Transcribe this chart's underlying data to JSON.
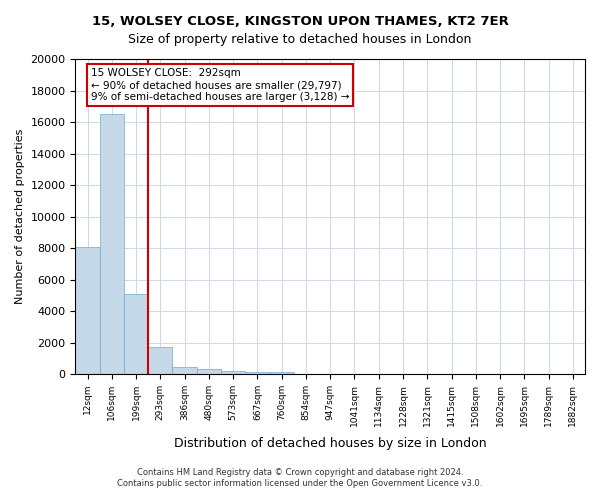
{
  "title1": "15, WOLSEY CLOSE, KINGSTON UPON THAMES, KT2 7ER",
  "title2": "Size of property relative to detached houses in London",
  "xlabel": "Distribution of detached houses by size in London",
  "ylabel": "Number of detached properties",
  "annotation_line1": "15 WOLSEY CLOSE:  292sqm",
  "annotation_line2": "← 90% of detached houses are smaller (29,797)",
  "annotation_line3": "9% of semi-detached houses are larger (3,128) →",
  "property_size_sqm": 292,
  "footer1": "Contains HM Land Registry data © Crown copyright and database right 2024.",
  "footer2": "Contains public sector information licensed under the Open Government Licence v3.0.",
  "bar_color": "#c5d8e8",
  "bar_edge_color": "#6aaad4",
  "vline_color": "#cc0000",
  "annotation_box_color": "#cc0000",
  "grid_color": "#d0d8e8",
  "background_color": "#ffffff",
  "bin_labels": [
    "12sqm",
    "106sqm",
    "199sqm",
    "293sqm",
    "386sqm",
    "480sqm",
    "573sqm",
    "667sqm",
    "760sqm",
    "854sqm",
    "947sqm",
    "1041sqm",
    "1134sqm",
    "1228sqm",
    "1321sqm",
    "1415sqm",
    "1508sqm",
    "1602sqm",
    "1695sqm",
    "1789sqm",
    "1882sqm"
  ],
  "counts": [
    8050,
    16500,
    5100,
    1700,
    420,
    320,
    200,
    150,
    120,
    0,
    0,
    0,
    0,
    0,
    0,
    0,
    0,
    0,
    0,
    0,
    0
  ],
  "ylim": [
    0,
    20000
  ],
  "yticks": [
    0,
    2000,
    4000,
    6000,
    8000,
    10000,
    12000,
    14000,
    16000,
    18000,
    20000
  ],
  "vline_x": 2.5
}
